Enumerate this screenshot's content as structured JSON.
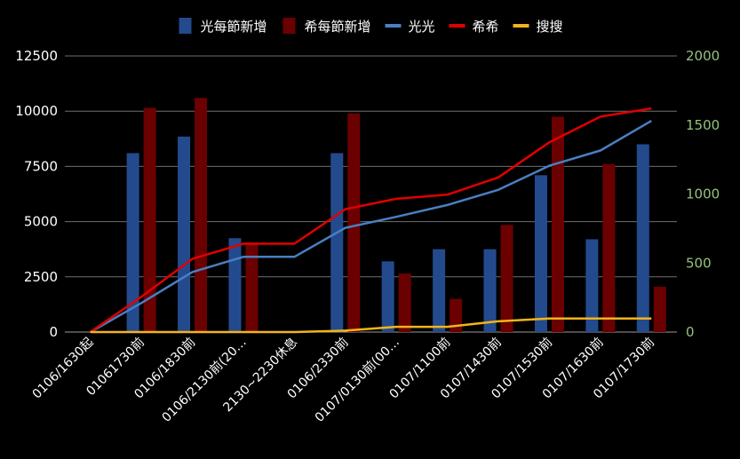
{
  "chart_data": {
    "type": "bar",
    "categories": [
      "0106/1630起",
      "01061730前",
      "0106/1830前",
      "0106/2130前(20…",
      "2130~2230休息",
      "0106/2330前",
      "0107/0130前(00…",
      "0107/1100前",
      "0107/1430前",
      "0107/1530前",
      "0107/1630前",
      "0107/1730前"
    ],
    "series": [
      {
        "name": "光每節新增",
        "kind": "bar",
        "axis": "left",
        "color": "#244a8e",
        "values": [
          0,
          8100,
          8850,
          4250,
          0,
          8100,
          3200,
          3750,
          3750,
          7100,
          4200,
          8500
        ]
      },
      {
        "name": "希每節新增",
        "kind": "bar",
        "axis": "left",
        "color": "#6b0000",
        "values": [
          0,
          10150,
          10600,
          4050,
          0,
          9900,
          2650,
          1500,
          4850,
          9750,
          7600,
          2050
        ]
      },
      {
        "name": "光光",
        "kind": "line",
        "axis": "right",
        "color": "#4a7fc1",
        "values": [
          0,
          210,
          435,
          545,
          545,
          755,
          835,
          920,
          1030,
          1205,
          1315,
          1530
        ]
      },
      {
        "name": "希希",
        "kind": "line",
        "axis": "right",
        "color": "#e00000",
        "values": [
          0,
          255,
          530,
          640,
          640,
          890,
          965,
          995,
          1120,
          1375,
          1560,
          1620
        ]
      },
      {
        "name": "搜搜",
        "kind": "line",
        "axis": "right",
        "color": "#f2b41a",
        "values": [
          0,
          0,
          0,
          0,
          0,
          10,
          38,
          38,
          78,
          98,
          98,
          98
        ]
      }
    ],
    "y_left": {
      "ticks": [
        "0",
        "2500",
        "5000",
        "7500",
        "10000",
        "12500"
      ],
      "ylim": [
        0,
        12500
      ]
    },
    "y_right": {
      "ticks": [
        "0",
        "500",
        "1000",
        "1500",
        "2000"
      ],
      "ylim": [
        0,
        2000
      ],
      "tick_color": "#93c47d"
    },
    "grid": true,
    "legend_position": "top"
  }
}
